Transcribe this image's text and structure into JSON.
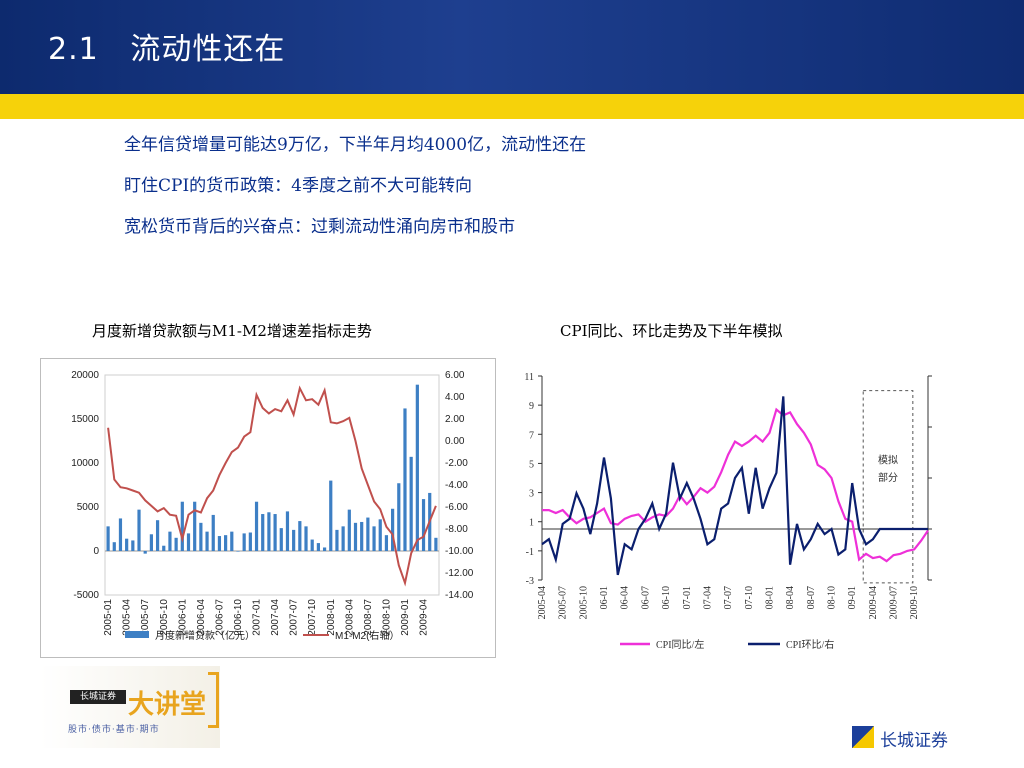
{
  "header": {
    "title": "2.1   流动性还在"
  },
  "bullets": [
    "全年信贷增量可能达9万亿，下半年月均4000亿，流动性还在",
    "盯住CPI的货币政策：4季度之前不大可能转向",
    "宽松货币背后的兴奋点：过剩流动性涌向房市和股市"
  ],
  "logo": {
    "company": "长城证券",
    "big_text": "大讲堂",
    "tagline": "股市·债市·基市·期市"
  },
  "brand": {
    "text": "长城证券"
  },
  "colors": {
    "header": "#0d2a6e",
    "band": "#f6d20a",
    "bullet_text": "#0a2f8c",
    "bar": "#3d7fc4",
    "m1m2_line": "#c0504d",
    "cpi_yoy": "#ee30d8",
    "cpi_mom": "#0b1f6e"
  },
  "chart_data": [
    {
      "type": "bar+line",
      "title": "月度新增贷款额与M1-M2增速差指标走势",
      "categories": [
        "2005-01",
        "2005-02",
        "2005-03",
        "2005-04",
        "2005-05",
        "2005-06",
        "2005-07",
        "2005-08",
        "2005-09",
        "2005-10",
        "2005-11",
        "2005-12",
        "2006-01",
        "2006-02",
        "2006-03",
        "2006-04",
        "2006-05",
        "2006-06",
        "2006-07",
        "2006-08",
        "2006-09",
        "2006-10",
        "2006-11",
        "2006-12",
        "2007-01",
        "2007-02",
        "2007-03",
        "2007-04",
        "2007-05",
        "2007-06",
        "2007-07",
        "2007-08",
        "2007-09",
        "2007-10",
        "2007-11",
        "2007-12",
        "2008-01",
        "2008-02",
        "2008-03",
        "2008-04",
        "2008-05",
        "2008-06",
        "2008-07",
        "2008-08",
        "2008-09",
        "2008-10",
        "2008-11",
        "2008-12",
        "2009-01",
        "2009-02",
        "2009-03",
        "2009-04",
        "2009-05",
        "2009-06"
      ],
      "x_tick_labels": [
        "2005-01",
        "2005-04",
        "2005-07",
        "2005-10",
        "2006-01",
        "2006-04",
        "2006-07",
        "2006-10",
        "2007-01",
        "2007-04",
        "2007-07",
        "2007-10",
        "2008-01",
        "2008-04",
        "2008-07",
        "2008-10",
        "2009-01",
        "2009-04"
      ],
      "series": [
        {
          "name": "月度新增贷款(亿元)",
          "axis": "left",
          "type": "bar",
          "values": [
            2800,
            1000,
            3700,
            1400,
            1200,
            4700,
            -300,
            1900,
            3500,
            600,
            2200,
            1500,
            5600,
            2000,
            5600,
            3200,
            2200,
            4100,
            1700,
            1800,
            2200,
            0,
            2000,
            2100,
            5600,
            4200,
            4400,
            4200,
            2600,
            4500,
            2400,
            3400,
            2800,
            1300,
            900,
            400,
            8000,
            2400,
            2800,
            4700,
            3200,
            3300,
            3800,
            2800,
            3600,
            1800,
            4800,
            7700,
            16200,
            10700,
            18900,
            5900,
            6600,
            1500
          ]
        },
        {
          "name": "M1-M2(右轴)",
          "axis": "right",
          "type": "line",
          "values": [
            1.2,
            -3.5,
            -4.2,
            -4.3,
            -4.5,
            -4.7,
            -5.4,
            -5.9,
            -6.4,
            -6.1,
            -6.7,
            -6.8,
            -8.9,
            -6.7,
            -6.3,
            -6.5,
            -5.2,
            -4.5,
            -3.1,
            -2.0,
            -1.0,
            -0.6,
            0.4,
            0.8,
            4.2,
            3.0,
            2.5,
            2.9,
            2.7,
            3.7,
            2.4,
            4.8,
            3.7,
            3.8,
            3.3,
            4.6,
            1.7,
            1.6,
            1.8,
            2.1,
            0.0,
            -2.5,
            -4.0,
            -5.5,
            -6.2,
            -7.8,
            -8.5,
            -11.3,
            -12.9,
            -10.2,
            -9.0,
            -8.7,
            -7.3,
            -5.9
          ]
        }
      ],
      "y_left": {
        "min": -5000,
        "max": 20000,
        "ticks": [
          "20000",
          "15000",
          "10000",
          "5000",
          "0",
          "-5000"
        ]
      },
      "y_right": {
        "min": -14,
        "max": 6,
        "ticks": [
          "6.00",
          "4.00",
          "2.00",
          "0.00",
          "-2.00",
          "-4.00",
          "-6.00",
          "-8.00",
          "-10.00",
          "-12.00",
          "-14.00"
        ]
      },
      "legend": [
        "月度新增贷款（亿元）",
        "M1-M2(右轴）"
      ],
      "legend_position": "bottom"
    },
    {
      "type": "line",
      "title": "CPI同比、环比走势及下半年模拟",
      "categories": [
        "2005-04",
        "2005-05",
        "2005-06",
        "2005-07",
        "2005-08",
        "2005-09",
        "2005-10",
        "2005-11",
        "2005-12",
        "06-01",
        "06-02",
        "06-03",
        "06-04",
        "06-05",
        "06-06",
        "06-07",
        "06-08",
        "06-09",
        "06-10",
        "06-11",
        "06-12",
        "07-01",
        "07-02",
        "07-03",
        "07-04",
        "07-05",
        "07-06",
        "07-07",
        "07-08",
        "07-09",
        "07-10",
        "07-11",
        "07-12",
        "08-01",
        "08-02",
        "08-03",
        "08-04",
        "08-05",
        "08-06",
        "08-07",
        "08-08",
        "08-09",
        "08-10",
        "08-11",
        "08-12",
        "09-01",
        "09-02",
        "09-03",
        "09-04",
        "09-05",
        "09-06",
        "09-07",
        "09-08",
        "09-09",
        "09-10",
        "09-11",
        "09-12"
      ],
      "x_tick_labels": [
        "2005-04",
        "2005-07",
        "2005-10",
        "06-01",
        "06-04",
        "06-07",
        "06-10",
        "07-01",
        "07-04",
        "07-07",
        "07-10",
        "08-01",
        "08-04",
        "08-07",
        "08-10",
        "09-01",
        "2009-04",
        "2009-07",
        "2009-10"
      ],
      "series": [
        {
          "name": "CPI同比/左",
          "axis": "left",
          "values": [
            1.8,
            1.8,
            1.6,
            1.8,
            1.3,
            0.9,
            1.2,
            1.3,
            1.6,
            1.9,
            0.9,
            0.8,
            1.2,
            1.4,
            1.5,
            1.0,
            1.3,
            1.5,
            1.4,
            1.9,
            2.8,
            2.2,
            2.7,
            3.3,
            3.0,
            3.4,
            4.4,
            5.6,
            6.5,
            6.2,
            6.5,
            6.9,
            6.5,
            7.1,
            8.7,
            8.3,
            8.5,
            7.7,
            7.1,
            6.3,
            4.9,
            4.6,
            4.0,
            2.4,
            1.2,
            1.0,
            -1.6,
            -1.2,
            -1.5,
            -1.4,
            -1.7,
            -1.3,
            -1.2,
            -1.0,
            -0.9,
            -0.3,
            0.4
          ]
        },
        {
          "name": "CPI环比/右",
          "axis": "right",
          "values": [
            -0.3,
            -0.2,
            -0.6,
            0.1,
            0.2,
            0.7,
            0.4,
            -0.1,
            0.5,
            1.4,
            0.6,
            -0.9,
            -0.3,
            -0.4,
            0.0,
            0.2,
            0.5,
            0.0,
            0.3,
            1.3,
            0.6,
            0.9,
            0.6,
            0.2,
            -0.3,
            -0.2,
            0.4,
            0.5,
            1.0,
            1.2,
            0.3,
            1.2,
            0.4,
            0.8,
            1.1,
            2.6,
            -0.7,
            0.1,
            -0.4,
            -0.2,
            0.1,
            -0.1,
            -0.0,
            -0.5,
            -0.4,
            0.9,
            0.0,
            -0.3,
            -0.2,
            0.0,
            0.0,
            0.0,
            0.0,
            0.0,
            0.0,
            0.0,
            0.0
          ]
        }
      ],
      "y_left": {
        "min": -3,
        "max": 11,
        "ticks": [
          "11",
          "9",
          "7",
          "5",
          "3",
          "1",
          "-1",
          "-3"
        ]
      },
      "y_right": {
        "min": -1,
        "max": 3,
        "ticks": [
          "3",
          "2",
          "1",
          "0",
          "-1"
        ]
      },
      "annotation": "模拟部分",
      "legend": [
        "CPI同比/左",
        "CPI环比/右"
      ],
      "legend_position": "bottom"
    }
  ]
}
